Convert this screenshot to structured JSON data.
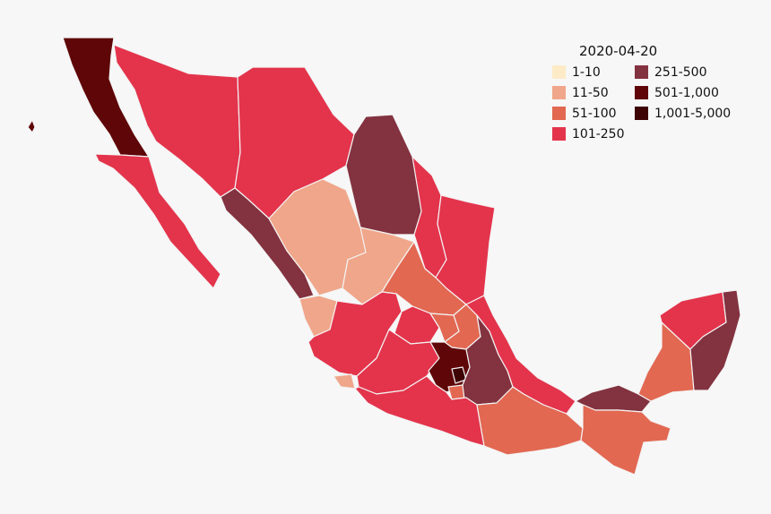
{
  "legend": {
    "title": "2020-04-20",
    "items": [
      {
        "label": "1-10",
        "color": "#fdebc8"
      },
      {
        "label": "11-50",
        "color": "#f0a68a"
      },
      {
        "label": "51-100",
        "color": "#e26852"
      },
      {
        "label": "101-250",
        "color": "#e3344c"
      },
      {
        "label": "251-500",
        "color": "#83323f"
      },
      {
        "label": "501-1,000",
        "color": "#5f0608"
      },
      {
        "label": "1,001-5,000",
        "color": "#3e0305"
      }
    ]
  }
}
